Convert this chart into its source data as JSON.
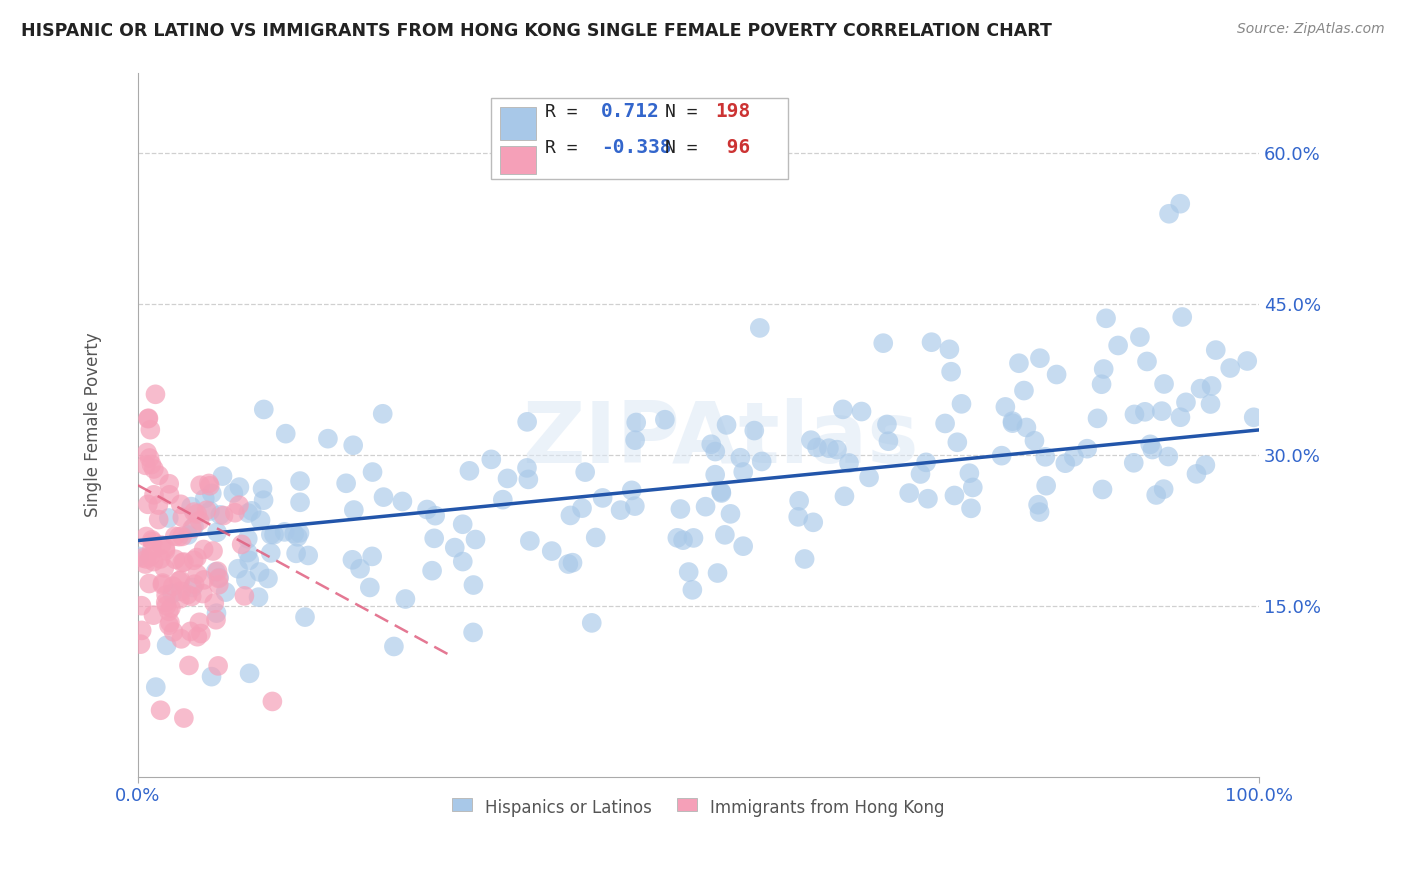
{
  "title": "HISPANIC OR LATINO VS IMMIGRANTS FROM HONG KONG SINGLE FEMALE POVERTY CORRELATION CHART",
  "source": "Source: ZipAtlas.com",
  "ylabel": "Single Female Poverty",
  "y_tick_labels": [
    "15.0%",
    "30.0%",
    "45.0%",
    "60.0%"
  ],
  "y_tick_values": [
    0.15,
    0.3,
    0.45,
    0.6
  ],
  "x_range": [
    0.0,
    1.0
  ],
  "y_range": [
    -0.02,
    0.68
  ],
  "watermark": "ZIPAtlas",
  "blue_scatter_color": "#a8c8e8",
  "blue_scatter_edge": "none",
  "blue_line_color": "#2255aa",
  "pink_scatter_color": "#f5a0b8",
  "pink_scatter_edge": "none",
  "pink_line_color": "#e06080",
  "background_color": "#ffffff",
  "grid_color": "#d0d0d0",
  "title_color": "#222222",
  "axis_label_color": "#3366cc",
  "blue_R": 0.712,
  "blue_N": 198,
  "pink_R": -0.338,
  "pink_N": 96,
  "blue_line_x": [
    0.0,
    1.0
  ],
  "blue_line_y": [
    0.215,
    0.325
  ],
  "pink_line_x": [
    0.0,
    0.28
  ],
  "pink_line_y": [
    0.27,
    0.1
  ],
  "legend_R_color": "#3366cc",
  "legend_N_color": "#cc3333",
  "legend_text_color": "#222222"
}
